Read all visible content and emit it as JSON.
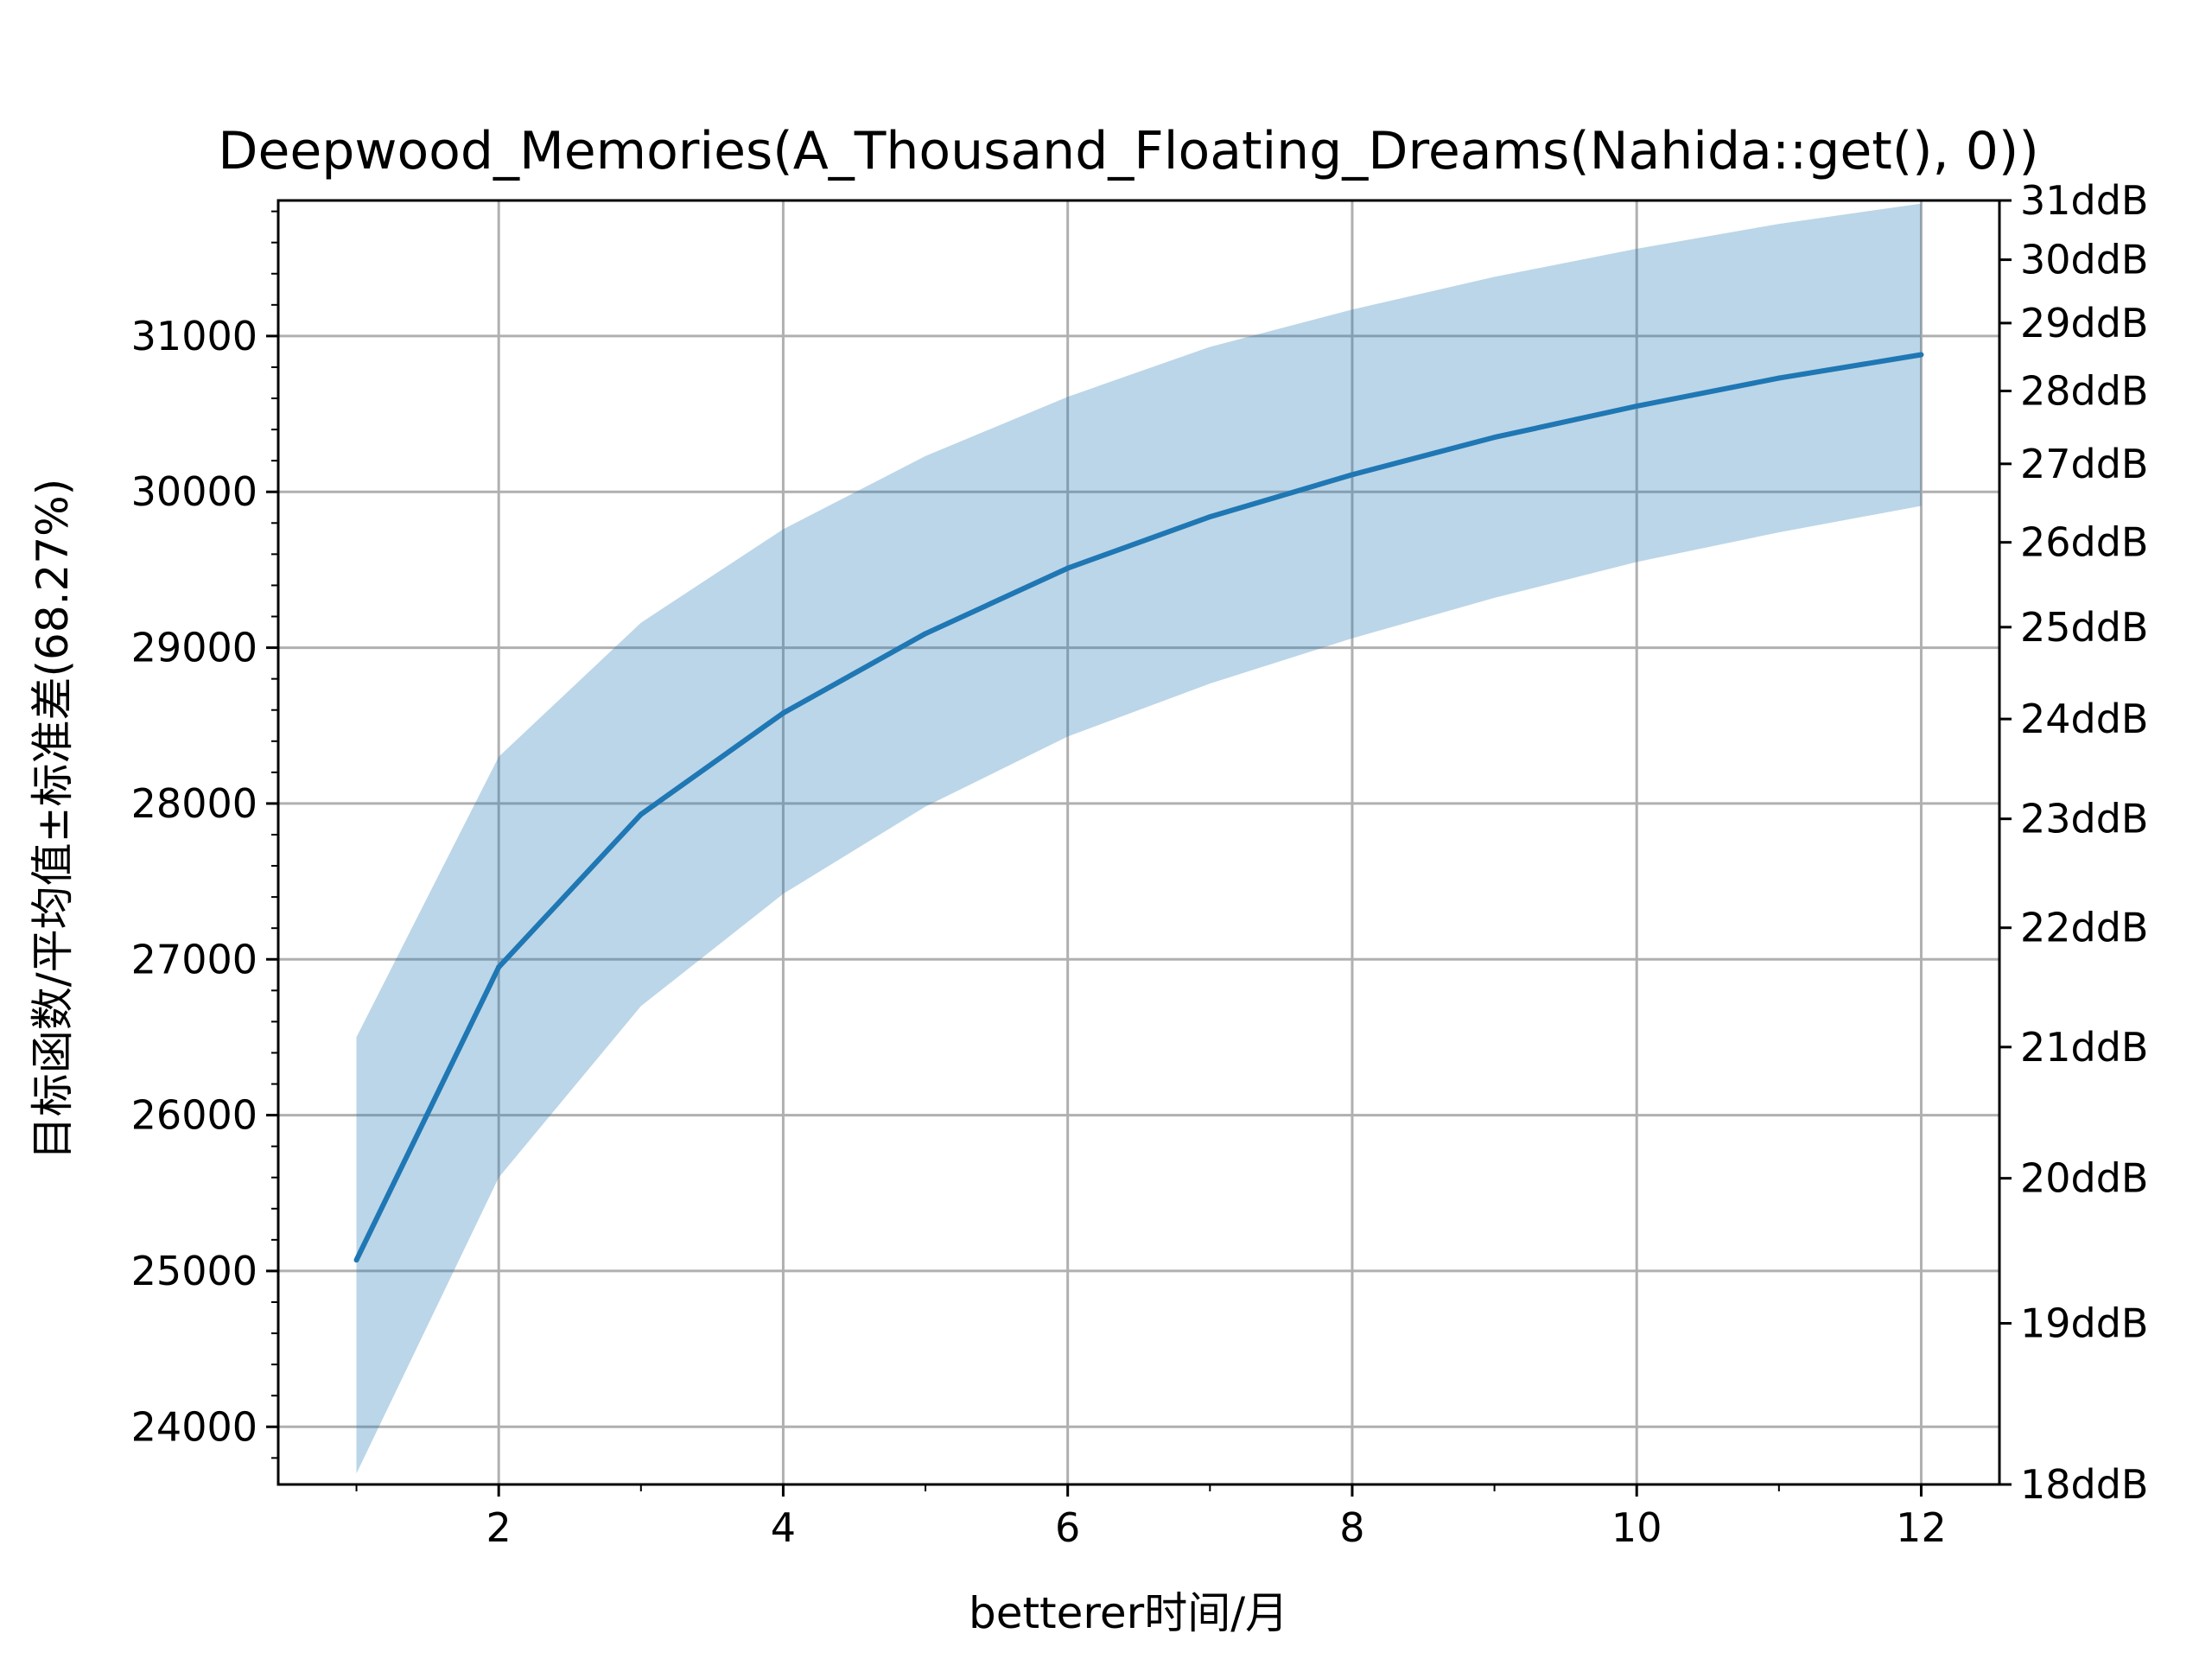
{
  "chart_data": {
    "type": "line",
    "title": "Deepwood_Memories(A_Thousand_Floating_Dreams(Nahida::get(), 0))",
    "xlabel": "betterer时间/月",
    "ylabel": "目标函数/平均值±标准差(68.27%)",
    "xlim": [
      0.45,
      12.55
    ],
    "ylim": [
      23630,
      31870
    ],
    "x_ticks": [
      2,
      4,
      6,
      8,
      10,
      12
    ],
    "x_ticks_minor": [
      1,
      3,
      5,
      7,
      9,
      11
    ],
    "y_ticks": [
      24000,
      25000,
      26000,
      27000,
      28000,
      29000,
      30000,
      31000
    ],
    "grid": true,
    "x": [
      1,
      2,
      3,
      4,
      5,
      6,
      7,
      8,
      9,
      10,
      11,
      12
    ],
    "series": [
      {
        "values": [
          25070,
          26950,
          27930,
          28580,
          29090,
          29510,
          29840,
          30110,
          30350,
          30550,
          30730,
          30880
        ],
        "lower": [
          23700,
          25600,
          26700,
          27420,
          27980,
          28430,
          28770,
          29060,
          29320,
          29550,
          29740,
          29910
        ],
        "upper": [
          26500,
          28300,
          29160,
          29760,
          30230,
          30610,
          30930,
          31170,
          31380,
          31560,
          31720,
          31850
        ],
        "color": "#1f77b4",
        "band_color": "#1f77b4",
        "band_opacity": 0.3
      }
    ],
    "y2": {
      "ticks": [
        {
          "value": 18,
          "label": "18ddB"
        },
        {
          "value": 19,
          "label": "19ddB"
        },
        {
          "value": 20,
          "label": "20ddB"
        },
        {
          "value": 21,
          "label": "21ddB"
        },
        {
          "value": 22,
          "label": "22ddB"
        },
        {
          "value": 23,
          "label": "23ddB"
        },
        {
          "value": 24,
          "label": "24ddB"
        },
        {
          "value": 25,
          "label": "25ddB"
        },
        {
          "value": 26,
          "label": "26ddB"
        },
        {
          "value": 27,
          "label": "27ddB"
        },
        {
          "value": 28,
          "label": "28ddB"
        },
        {
          "value": 29,
          "label": "29ddB"
        },
        {
          "value": 30,
          "label": "30ddB"
        },
        {
          "value": 31,
          "label": "31ddB"
        }
      ],
      "scale": "reciprocal",
      "lim_at_axis_bottom": 23630,
      "lim_at_axis_top": 31870
    }
  }
}
